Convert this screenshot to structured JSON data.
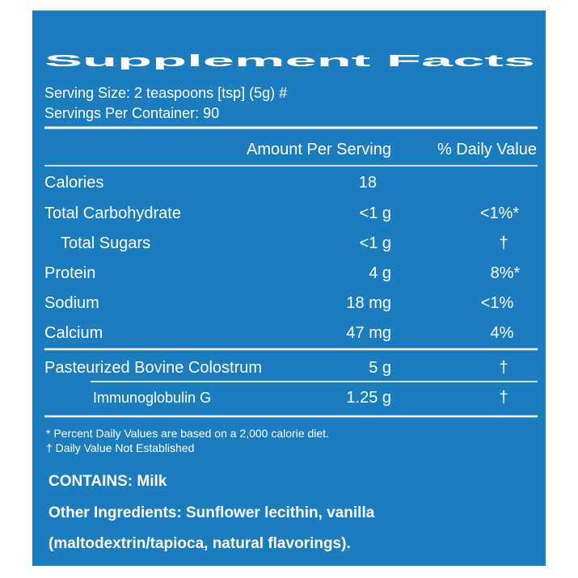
{
  "header": {
    "title": "Supplement Facts",
    "serving_size": "Serving Size: 2 teaspoons [tsp] (5g) #",
    "servings_per_container": "Servings Per Container: 90"
  },
  "table": {
    "columns": [
      "Amount Per Serving",
      "% Daily Value"
    ],
    "rows": [
      {
        "name": "Calories",
        "amount": "18"
      },
      {
        "name": "Total Carbohydrate",
        "amount": "<1 g",
        "daily_value": "<1%*"
      },
      {
        "name": "Total Sugars",
        "amount": "<1 g",
        "daily_value": "†"
      },
      {
        "name": "Protein",
        "amount": "4 g",
        "daily_value": "8%*"
      },
      {
        "name": "Sodium",
        "amount": "18 mg",
        "daily_value": "<1%"
      },
      {
        "name": "Calcium",
        "amount": "47 mg",
        "daily_value": "4%"
      },
      {
        "name": "Pasteurized Bovine Colostrum",
        "amount": "5 g",
        "daily_value": "†"
      },
      {
        "name": "Immunoglobulin G",
        "amount": "1.25 g",
        "daily_value": "†"
      }
    ]
  },
  "footnotes": [
    "* Percent Daily Values are based on a 2,000 calorie diet.",
    "† Daily Value Not Established"
  ],
  "contains": "CONTAINS: Milk",
  "other_ingredients": [
    "Other Ingredients: Sunflower lecithin, vanilla",
    "(maltodextrin/tapioca, natural flavorings)."
  ]
}
